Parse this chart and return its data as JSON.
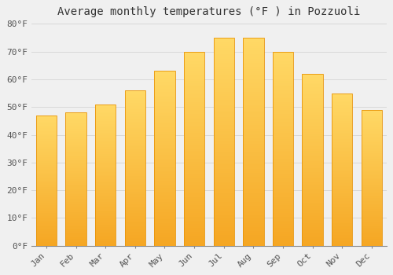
{
  "months": [
    "Jan",
    "Feb",
    "Mar",
    "Apr",
    "May",
    "Jun",
    "Jul",
    "Aug",
    "Sep",
    "Oct",
    "Nov",
    "Dec"
  ],
  "values": [
    47,
    48,
    51,
    56,
    63,
    70,
    75,
    75,
    70,
    62,
    55,
    49
  ],
  "title": "Average monthly temperatures (°F ) in Pozzuoli",
  "ylim": [
    0,
    80
  ],
  "yticks": [
    0,
    10,
    20,
    30,
    40,
    50,
    60,
    70,
    80
  ],
  "ytick_labels": [
    "0°F",
    "10°F",
    "20°F",
    "30°F",
    "40°F",
    "50°F",
    "60°F",
    "70°F",
    "80°F"
  ],
  "bar_color_bottom": "#F5A623",
  "bar_color_top": "#FFD966",
  "bar_edge_color": "#E8940A",
  "background_color": "#F0F0F0",
  "grid_color": "#D8D8D8",
  "title_fontsize": 10,
  "tick_fontsize": 8,
  "bar_width": 0.7
}
